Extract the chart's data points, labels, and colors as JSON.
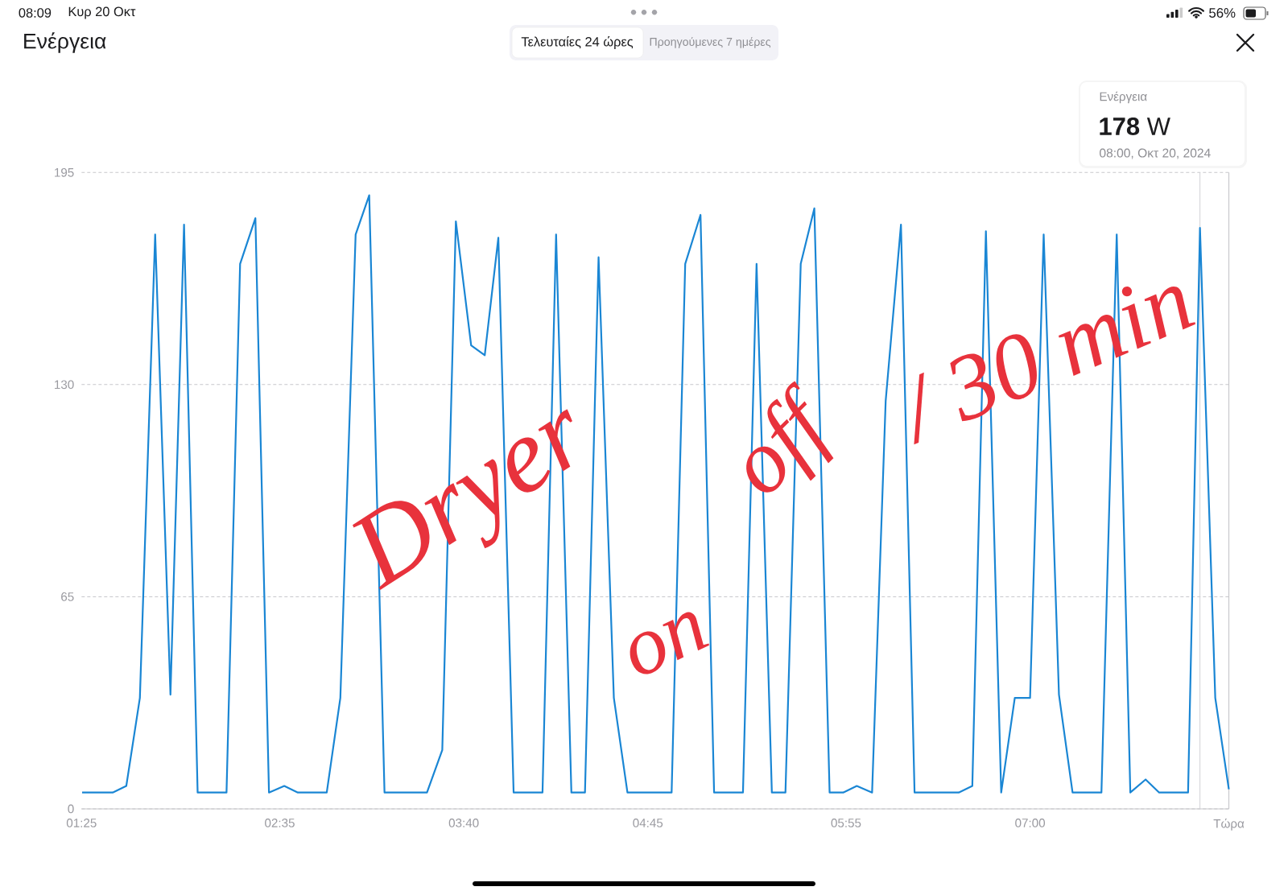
{
  "chart_data": {
    "type": "line",
    "title": "Ενέργεια",
    "annotations": [
      "08:09",
      "Κυρ 20 Οκτ",
      "56%",
      "Τελευταίες 24 ώρες",
      "Προηγούμενες 7 ημέρες",
      "Ενέργεια",
      "**178** W",
      "08:00, Οκτ 20, 2024",
      "Dryer",
      "on",
      "off",
      "/ 30 min"
    ],
    "x": [
      1.42,
      1.6,
      1.68,
      1.76,
      1.85,
      1.94,
      2.02,
      2.1,
      2.27,
      2.35,
      2.44,
      2.52,
      2.61,
      2.69,
      2.86,
      2.94,
      3.03,
      3.11,
      3.2,
      3.45,
      3.54,
      3.62,
      3.71,
      3.79,
      3.87,
      3.96,
      4.13,
      4.21,
      4.3,
      4.38,
      4.46,
      4.55,
      4.63,
      4.89,
      4.97,
      5.06,
      5.14,
      5.31,
      5.39,
      5.48,
      5.56,
      5.65,
      5.73,
      5.82,
      5.9,
      5.98,
      6.07,
      6.15,
      6.24,
      6.32,
      6.58,
      6.66,
      6.74,
      6.83,
      6.91,
      7.0,
      7.08,
      7.17,
      7.25,
      7.42,
      7.51,
      7.59,
      7.68,
      7.76,
      7.93,
      8.0,
      8.09,
      8.17
    ],
    "values": [
      5,
      5,
      7,
      34,
      176,
      35,
      179,
      5,
      5,
      167,
      181,
      5,
      7,
      5,
      5,
      34,
      176,
      188,
      5,
      5,
      18,
      180,
      142,
      139,
      175,
      5,
      5,
      176,
      5,
      5,
      169,
      34,
      5,
      5,
      167,
      182,
      5,
      5,
      167,
      5,
      5,
      167,
      184,
      5,
      5,
      7,
      5,
      125,
      179,
      5,
      5,
      7,
      177,
      5,
      34,
      34,
      176,
      35,
      5,
      5,
      176,
      5,
      9,
      5,
      5,
      178,
      34,
      6
    ],
    "color": "#1a86d4",
    "xlim": [
      1.4167,
      8.17
    ],
    "xticks": [
      {
        "value": 1.4167,
        "label": "01:25"
      },
      {
        "value": 2.5833,
        "label": "02:35"
      },
      {
        "value": 3.6667,
        "label": "03:40"
      },
      {
        "value": 4.75,
        "label": "04:45"
      },
      {
        "value": 5.9167,
        "label": "05:55"
      },
      {
        "value": 7.0,
        "label": "07:00"
      },
      {
        "value": 8.17,
        "label": "Τώρα"
      }
    ],
    "ylim": [
      0,
      195
    ],
    "yticks": [
      0,
      65,
      130,
      195
    ],
    "grid": "y",
    "ref_lines": [
      {
        "axis": "x",
        "value": 8.0,
        "color": "#d1d1d6"
      }
    ]
  }
}
